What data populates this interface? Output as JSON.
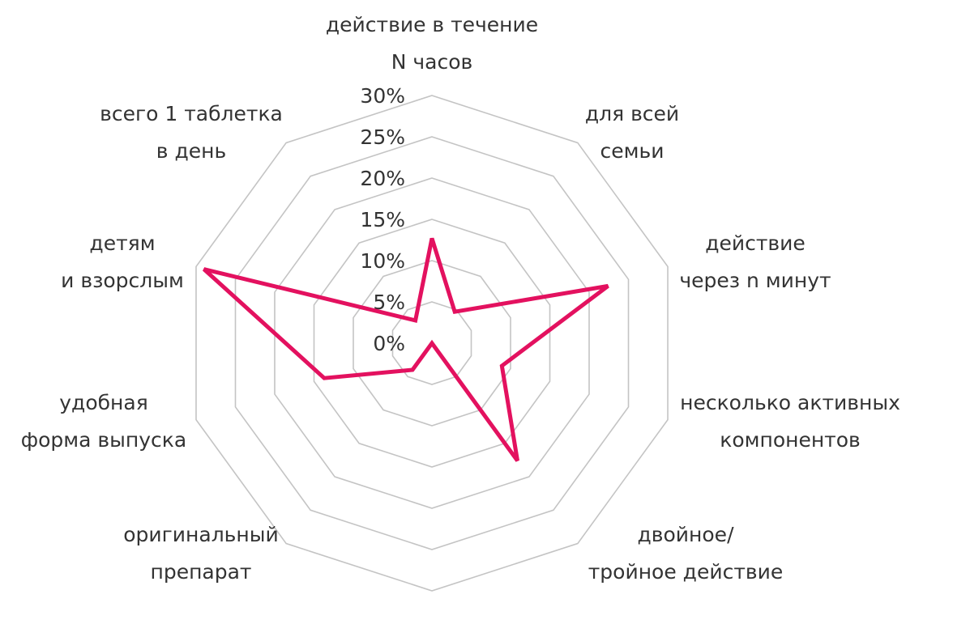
{
  "chart_data": {
    "type": "radar",
    "title": "",
    "categories": [
      [
        "действие в течение",
        "N часов"
      ],
      [
        "для всей",
        "семьи"
      ],
      [
        "действие",
        "через n минут"
      ],
      [
        "несколько активных",
        "компонентов"
      ],
      [
        "двойное/",
        "тройное действие"
      ],
      [],
      [
        "оригинальный",
        "препарат"
      ],
      [
        "удобная",
        "форма выпуска"
      ],
      [
        "детям",
        "и взорслым"
      ],
      [
        "всего 1 таблетка",
        "в день"
      ]
    ],
    "series": [
      {
        "name": "",
        "color": "#e3115f",
        "values": [
          12.7,
          4.7,
          22.4,
          8.9,
          17.6,
          0,
          4,
          13.7,
          29,
          3.4
        ]
      }
    ],
    "rlim": [
      0,
      30
    ],
    "ticks": [
      0,
      5,
      10,
      15,
      20,
      25,
      30
    ],
    "tick_labels": [
      "0%",
      "5%",
      "10%",
      "15%",
      "20%",
      "25%",
      "30%"
    ],
    "grid_color": "#c4c4c4"
  }
}
